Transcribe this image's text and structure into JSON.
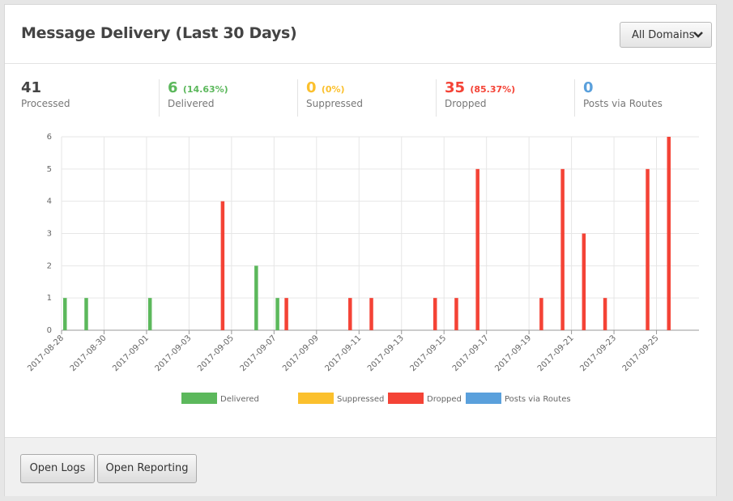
{
  "header": {
    "title": "Message Delivery (Last 30 Days)",
    "dropdown": "All Domains"
  },
  "stats": [
    {
      "value": "41",
      "label": "Processed"
    },
    {
      "value": "6",
      "percent": "(14.63%)",
      "label": "Delivered"
    },
    {
      "value": "0",
      "percent": "(0%)",
      "label": "Suppressed"
    },
    {
      "value": "35",
      "percent": "(85.37%)",
      "label": "Dropped"
    },
    {
      "value": "0",
      "label": "Posts via Routes"
    }
  ],
  "chart_data": {
    "type": "bar",
    "categories": [
      "2017-08-28",
      null,
      "2017-08-30",
      null,
      "2017-09-01",
      null,
      "2017-09-03",
      null,
      "2017-09-05",
      null,
      "2017-09-07",
      null,
      "2017-09-09",
      null,
      "2017-09-11",
      null,
      "2017-09-13",
      null,
      "2017-09-15",
      null,
      "2017-09-17",
      null,
      "2017-09-19",
      null,
      "2017-09-21",
      null,
      "2017-09-23",
      null,
      "2017-09-25",
      null
    ],
    "series": [
      {
        "name": "Delivered",
        "color": "#5cb85c",
        "values": [
          1,
          1,
          0,
          0,
          1,
          0,
          0,
          0,
          0,
          2,
          1,
          0,
          0,
          0,
          0,
          0,
          0,
          0,
          0,
          0,
          0,
          0,
          0,
          0,
          0,
          0,
          0,
          0,
          0,
          0
        ]
      },
      {
        "name": "Suppressed",
        "color": "#fbc02d",
        "values": [
          0,
          0,
          0,
          0,
          0,
          0,
          0,
          0,
          0,
          0,
          0,
          0,
          0,
          0,
          0,
          0,
          0,
          0,
          0,
          0,
          0,
          0,
          0,
          0,
          0,
          0,
          0,
          0,
          0,
          0
        ]
      },
      {
        "name": "Dropped",
        "color": "#f44336",
        "values": [
          0,
          0,
          0,
          0,
          0,
          0,
          0,
          4,
          0,
          0,
          1,
          0,
          0,
          1,
          1,
          0,
          0,
          1,
          1,
          5,
          0,
          0,
          1,
          5,
          3,
          1,
          0,
          5,
          6,
          0
        ]
      },
      {
        "name": "Posts via Routes",
        "color": "#5aa0dc",
        "values": [
          0,
          0,
          0,
          0,
          0,
          0,
          0,
          0,
          0,
          0,
          0,
          0,
          0,
          0,
          0,
          0,
          0,
          0,
          0,
          0,
          0,
          0,
          0,
          0,
          0,
          0,
          0,
          0,
          0,
          0
        ]
      }
    ],
    "ylim": [
      0,
      6
    ],
    "yticks": [
      0,
      1,
      2,
      3,
      4,
      5,
      6
    ],
    "grid": true,
    "legend": "bottom"
  },
  "footer": {
    "buttons": [
      "Open Logs",
      "Open Reporting"
    ]
  }
}
